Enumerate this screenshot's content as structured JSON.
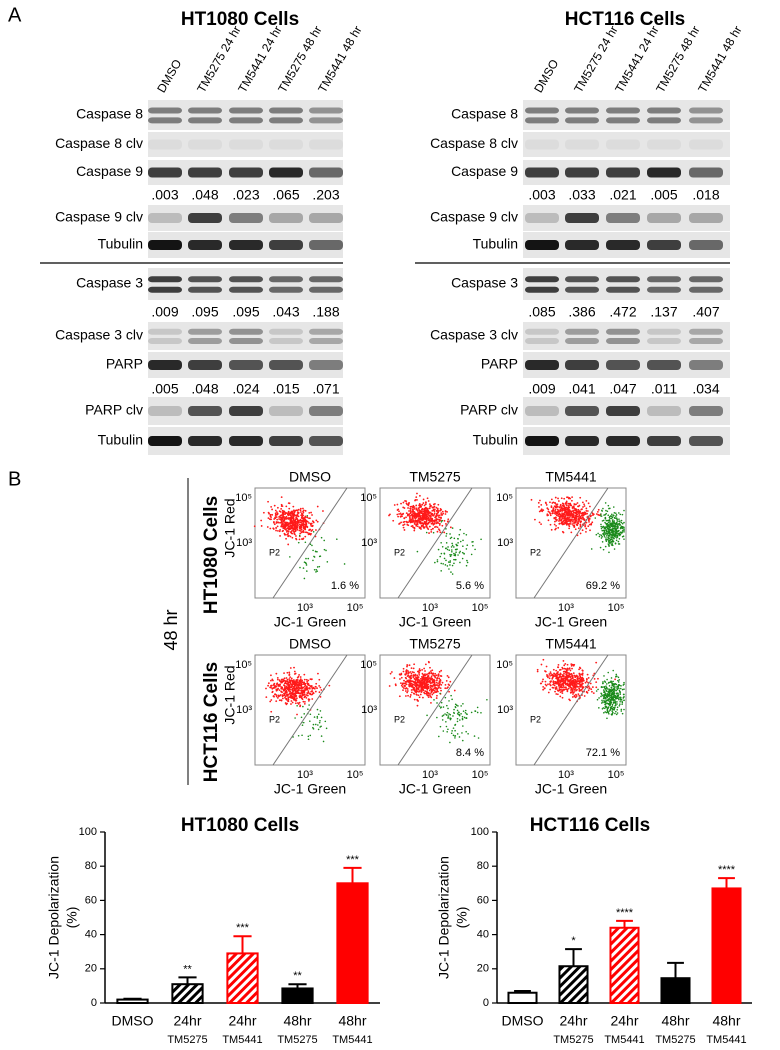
{
  "panel_a": {
    "label": "A",
    "blots": [
      {
        "title": "HT1080 Cells",
        "lanes": [
          "DMSO",
          "TM5275 24 hr",
          "TM5441 24 hr",
          "TM5275 48 hr",
          "TM5441 48 hr"
        ],
        "rows": [
          "Caspase 8",
          "Caspase 8 clv",
          "Caspase 9",
          "Caspase 9 clv",
          "Tubulin",
          "Caspase 3",
          "Caspase 3 clv",
          "PARP",
          "PARP clv",
          "Tubulin"
        ],
        "quantification": [
          [
            ".003",
            ".048",
            ".023",
            ".065",
            ".203"
          ],
          [
            ".009",
            ".095",
            ".095",
            ".043",
            ".188"
          ],
          [
            ".005",
            ".048",
            ".024",
            ".015",
            ".071"
          ]
        ]
      },
      {
        "title": "HCT116 Cells",
        "lanes": [
          "DMSO",
          "TM5275 24 hr",
          "TM5441 24 hr",
          "TM5275 48 hr",
          "TM5441 48 hr"
        ],
        "rows": [
          "Caspase 8",
          "Caspase 8 clv",
          "Caspase 9",
          "Caspase 9 clv",
          "Tubulin",
          "Caspase 3",
          "Caspase 3 clv",
          "PARP",
          "PARP clv",
          "Tubulin"
        ],
        "quantification": [
          [
            ".003",
            ".033",
            ".021",
            ".005",
            ".018"
          ],
          [
            ".085",
            ".386",
            ".472",
            ".137",
            ".407"
          ],
          [
            ".009",
            ".041",
            ".047",
            ".011",
            ".034"
          ]
        ]
      }
    ]
  },
  "panel_b": {
    "label": "B",
    "time": "48 hr",
    "x_label": "JC-1 Green",
    "y_label": "JC-1 Red",
    "gate": "P2",
    "tick_low": "10³",
    "tick_high": "10⁵",
    "rows": [
      {
        "cell_line": "HT1080 Cells",
        "plots": [
          {
            "title": "DMSO",
            "percent": "1.6 %"
          },
          {
            "title": "TM5275",
            "percent": "5.6 %"
          },
          {
            "title": "TM5441",
            "percent": "69.2 %"
          }
        ]
      },
      {
        "cell_line": "HCT116 Cells",
        "plots": [
          {
            "title": "DMSO",
            "percent": null
          },
          {
            "title": "TM5275",
            "percent": "8.4 %"
          },
          {
            "title": "TM5441",
            "percent": "72.1 %"
          }
        ]
      }
    ]
  },
  "chart_data": [
    {
      "type": "bar",
      "title": "HT1080 Cells",
      "ylabel": [
        "JC-1 Depolarization",
        "(%)"
      ],
      "categories": [
        "DMSO",
        "24hr",
        "24hr",
        "48hr",
        "48hr"
      ],
      "subcategories": [
        null,
        "TM5275",
        "TM5441",
        "TM5275",
        "TM5441"
      ],
      "values": [
        2,
        11,
        29,
        8.5,
        70
      ],
      "errors": [
        0.5,
        4,
        10,
        2.5,
        9
      ],
      "annotations": [
        null,
        "**",
        "***",
        "**",
        "***"
      ],
      "colors": [
        "#ffffff",
        "#000000",
        "#ff0000",
        "#000000",
        "#ff0000"
      ],
      "hatch": [
        false,
        true,
        true,
        false,
        false
      ],
      "ylim": [
        0,
        100
      ],
      "yticks": [
        0,
        20,
        40,
        60,
        80,
        100
      ]
    },
    {
      "type": "bar",
      "title": "HCT116 Cells",
      "ylabel": [
        "JC-1 Depolarization",
        "(%)"
      ],
      "categories": [
        "DMSO",
        "24hr",
        "24hr",
        "48hr",
        "48hr"
      ],
      "subcategories": [
        null,
        "TM5275",
        "TM5441",
        "TM5275",
        "TM5441"
      ],
      "values": [
        6,
        21.5,
        44,
        14.5,
        67
      ],
      "errors": [
        1,
        10,
        4,
        9,
        6
      ],
      "annotations": [
        null,
        "*",
        "****",
        null,
        "****"
      ],
      "colors": [
        "#ffffff",
        "#000000",
        "#ff0000",
        "#000000",
        "#ff0000"
      ],
      "hatch": [
        false,
        true,
        true,
        false,
        false
      ],
      "ylim": [
        0,
        100
      ],
      "yticks": [
        0,
        20,
        40,
        60,
        80,
        100
      ]
    }
  ]
}
